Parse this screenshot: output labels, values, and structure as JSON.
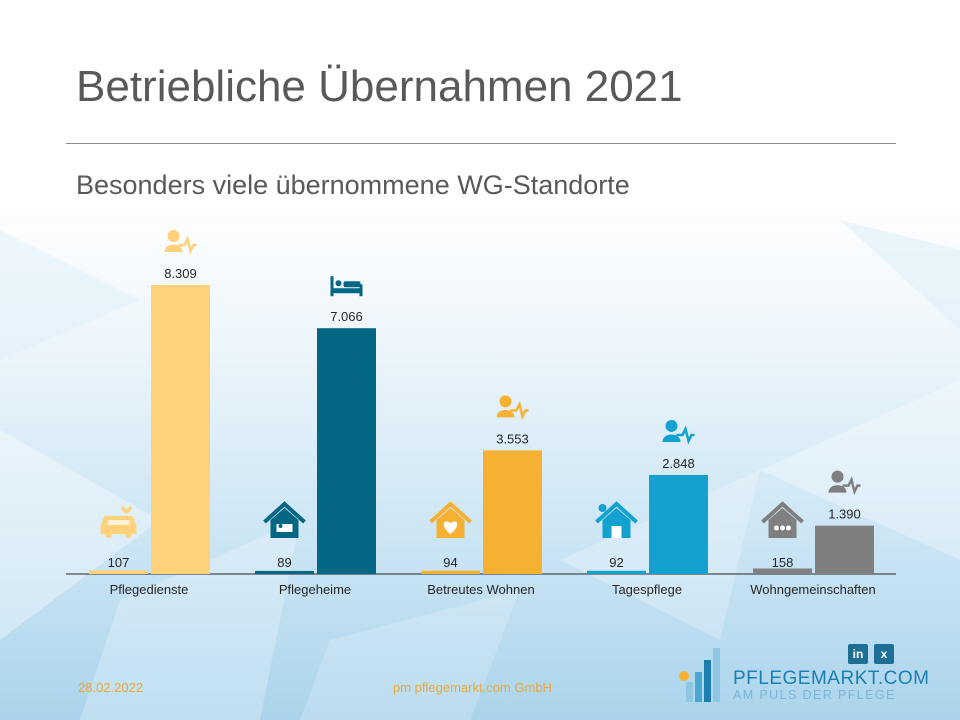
{
  "header": {
    "title": "Betriebliche Übernahmen 2021",
    "subtitle": "Besonders viele übernommene WG-Standorte"
  },
  "footer": {
    "date": "28.02.2022",
    "company": "pm pflegemarkt.com GmbH",
    "logo_name": "PFLEGEMARKT.COM",
    "logo_tagline": "AM PULS DER PFLEGE",
    "linkedin_label": "in",
    "xing_label": "x"
  },
  "colors": {
    "pflegedienste": "#fdd27a",
    "pflegeheime": "#036683",
    "betreutes_wohnen": "#f6b133",
    "tagespflege": "#13a1cf",
    "wohngemeinschaften": "#7f7f7f",
    "title_text": "#595959",
    "footer_text": "#e7a93b"
  },
  "chart_data": {
    "type": "bar",
    "categories": [
      "Pflegedienste",
      "Pflegeheime",
      "Betreutes Wohnen",
      "Tagespflege",
      "Wohngemeinschaften"
    ],
    "series": [
      {
        "values": [
          107,
          89,
          94,
          92,
          158
        ],
        "labels": [
          "107",
          "89",
          "94",
          "92",
          "158"
        ]
      },
      {
        "values": [
          8309,
          7066,
          3553,
          2848,
          1390
        ],
        "labels": [
          "8.309",
          "7.066",
          "3.553",
          "2.848",
          "1.390"
        ]
      }
    ],
    "bar_colors": [
      "#fdd27a",
      "#036683",
      "#f6b133",
      "#13a1cf",
      "#7f7f7f"
    ],
    "category_icons": [
      "car-heart-icon",
      "house-bed-icon",
      "house-heart-icon",
      "house-sun-icon",
      "house-group-icon"
    ],
    "value_icons": [
      "person-pulse-icon",
      "bed-icon",
      "person-pulse-icon",
      "person-pulse-icon",
      "person-pulse-icon"
    ],
    "ylim": [
      0,
      8309
    ],
    "grid": false,
    "legend": "none",
    "xlabel": "",
    "ylabel": ""
  }
}
